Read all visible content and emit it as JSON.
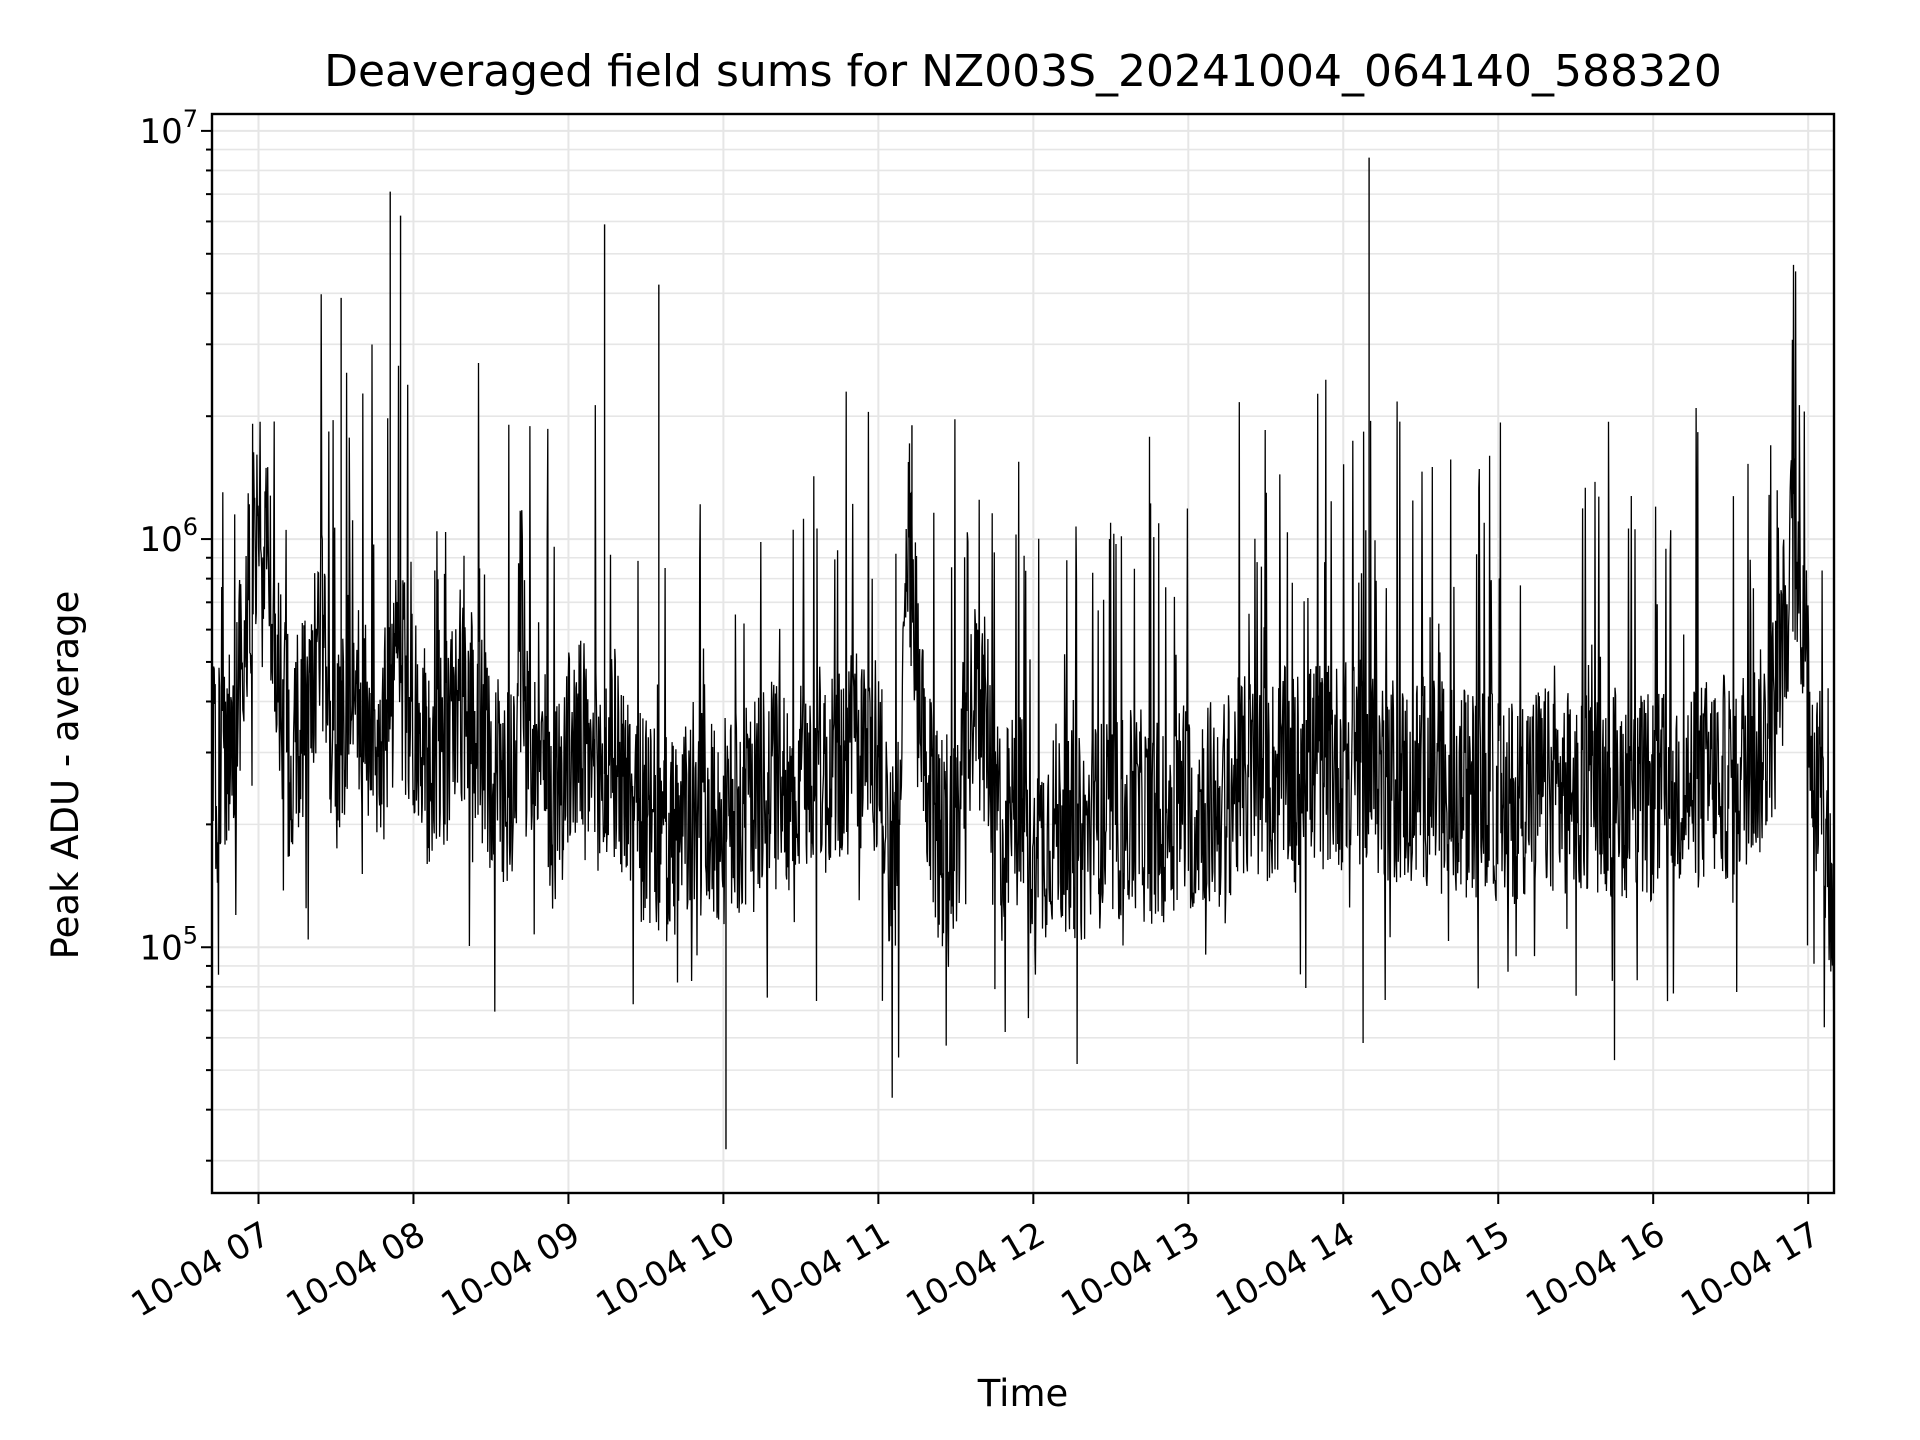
{
  "chart_data": {
    "type": "line",
    "title": "Deaveraged field sums for NZ003S_20241004_064140_588320",
    "xlabel": "Time",
    "ylabel": "Peak ADU - average",
    "yscale": "log",
    "ylim": [
      25000,
      11000000
    ],
    "xlim": [
      "2024-10-04 06:42",
      "2024-10-04 17:10"
    ],
    "grid": true,
    "legend": "none",
    "line_color": "#000000",
    "x_tick_labels": [
      "10-04 07",
      "10-04 08",
      "10-04 09",
      "10-04 10",
      "10-04 11",
      "10-04 12",
      "10-04 13",
      "10-04 14",
      "10-04 15",
      "10-04 16",
      "10-04 17"
    ],
    "y_tick_labels": [
      {
        "base": "10",
        "exp": "5"
      },
      {
        "base": "10",
        "exp": "6"
      },
      {
        "base": "10",
        "exp": "7"
      }
    ],
    "series": [
      {
        "x": [
          "2024-10-04 06:42",
          "2024-10-04 06:48",
          "2024-10-04 06:52",
          "2024-10-04 07:00",
          "2024-10-04 07:06",
          "2024-10-04 07:12",
          "2024-10-04 07:18",
          "2024-10-04 07:24",
          "2024-10-04 07:30",
          "2024-10-04 07:36",
          "2024-10-04 07:42",
          "2024-10-04 07:48",
          "2024-10-04 07:54",
          "2024-10-04 08:00",
          "2024-10-04 08:06",
          "2024-10-04 08:12",
          "2024-10-04 08:18",
          "2024-10-04 08:24",
          "2024-10-04 08:30",
          "2024-10-04 08:36",
          "2024-10-04 08:42",
          "2024-10-04 08:48",
          "2024-10-04 08:54",
          "2024-10-04 09:00",
          "2024-10-04 09:06",
          "2024-10-04 09:12",
          "2024-10-04 09:18",
          "2024-10-04 09:24",
          "2024-10-04 09:30",
          "2024-10-04 09:36",
          "2024-10-04 09:42",
          "2024-10-04 09:48",
          "2024-10-04 09:54",
          "2024-10-04 10:00",
          "2024-10-04 10:06",
          "2024-10-04 10:12",
          "2024-10-04 10:18",
          "2024-10-04 10:24",
          "2024-10-04 10:30",
          "2024-10-04 10:36",
          "2024-10-04 10:42",
          "2024-10-04 10:48",
          "2024-10-04 10:54",
          "2024-10-04 11:00",
          "2024-10-04 11:06",
          "2024-10-04 11:12",
          "2024-10-04 11:18",
          "2024-10-04 11:24",
          "2024-10-04 11:30",
          "2024-10-04 11:36",
          "2024-10-04 11:42",
          "2024-10-04 11:48",
          "2024-10-04 11:54",
          "2024-10-04 12:00",
          "2024-10-04 12:06",
          "2024-10-04 12:12",
          "2024-10-04 12:18",
          "2024-10-04 12:24",
          "2024-10-04 12:30",
          "2024-10-04 12:36",
          "2024-10-04 12:42",
          "2024-10-04 12:48",
          "2024-10-04 12:54",
          "2024-10-04 13:00",
          "2024-10-04 13:06",
          "2024-10-04 13:12",
          "2024-10-04 13:18",
          "2024-10-04 13:24",
          "2024-10-04 13:30",
          "2024-10-04 13:36",
          "2024-10-04 13:42",
          "2024-10-04 13:48",
          "2024-10-04 13:54",
          "2024-10-04 14:00",
          "2024-10-04 14:06",
          "2024-10-04 14:12",
          "2024-10-04 14:18",
          "2024-10-04 14:24",
          "2024-10-04 14:30",
          "2024-10-04 14:36",
          "2024-10-04 14:42",
          "2024-10-04 14:48",
          "2024-10-04 14:54",
          "2024-10-04 15:00",
          "2024-10-04 15:06",
          "2024-10-04 15:12",
          "2024-10-04 15:18",
          "2024-10-04 15:24",
          "2024-10-04 15:30",
          "2024-10-04 15:36",
          "2024-10-04 15:42",
          "2024-10-04 15:48",
          "2024-10-04 15:54",
          "2024-10-04 16:00",
          "2024-10-04 16:06",
          "2024-10-04 16:12",
          "2024-10-04 16:18",
          "2024-10-04 16:24",
          "2024-10-04 16:30",
          "2024-10-04 16:36",
          "2024-10-04 16:42",
          "2024-10-04 16:48",
          "2024-10-04 16:54",
          "2024-10-04 16:58",
          "2024-10-04 17:02",
          "2024-10-04 17:06",
          "2024-10-04 17:10"
        ],
        "values": [
          270000,
          280000,
          420000,
          1200000,
          600000,
          300000,
          380000,
          600000,
          280000,
          450000,
          350000,
          320000,
          500000,
          350000,
          280000,
          300000,
          420000,
          350000,
          280000,
          250000,
          300000,
          330000,
          220000,
          300000,
          320000,
          250000,
          300000,
          230000,
          200000,
          180000,
          180000,
          220000,
          200000,
          200000,
          210000,
          220000,
          250000,
          250000,
          250000,
          280000,
          250000,
          300000,
          300000,
          300000,
          150000,
          1000000,
          250000,
          180000,
          200000,
          400000,
          350000,
          180000,
          230000,
          150000,
          200000,
          200000,
          180000,
          200000,
          200000,
          210000,
          210000,
          200000,
          220000,
          220000,
          230000,
          220000,
          250000,
          260000,
          250000,
          270000,
          260000,
          280000,
          280000,
          280000,
          280000,
          270000,
          260000,
          250000,
          260000,
          250000,
          240000,
          240000,
          240000,
          230000,
          230000,
          250000,
          240000,
          240000,
          240000,
          250000,
          240000,
          240000,
          230000,
          230000,
          240000,
          250000,
          250000,
          260000,
          260000,
          280000,
          300000,
          400000,
          1000000,
          700000,
          280000,
          200000,
          110000
        ]
      }
    ],
    "spikes": [
      {
        "x": "2024-10-04 07:32",
        "y": 3900000
      },
      {
        "x": "2024-10-04 07:51",
        "y": 7100000
      },
      {
        "x": "2024-10-04 07:55",
        "y": 6200000
      },
      {
        "x": "2024-10-04 09:14",
        "y": 5900000
      },
      {
        "x": "2024-10-04 09:35",
        "y": 4200000
      },
      {
        "x": "2024-10-04 11:13",
        "y": 1900000
      },
      {
        "x": "2024-10-04 14:10",
        "y": 8600000
      },
      {
        "x": "2024-10-04 10:01",
        "y": 32000
      }
    ]
  }
}
